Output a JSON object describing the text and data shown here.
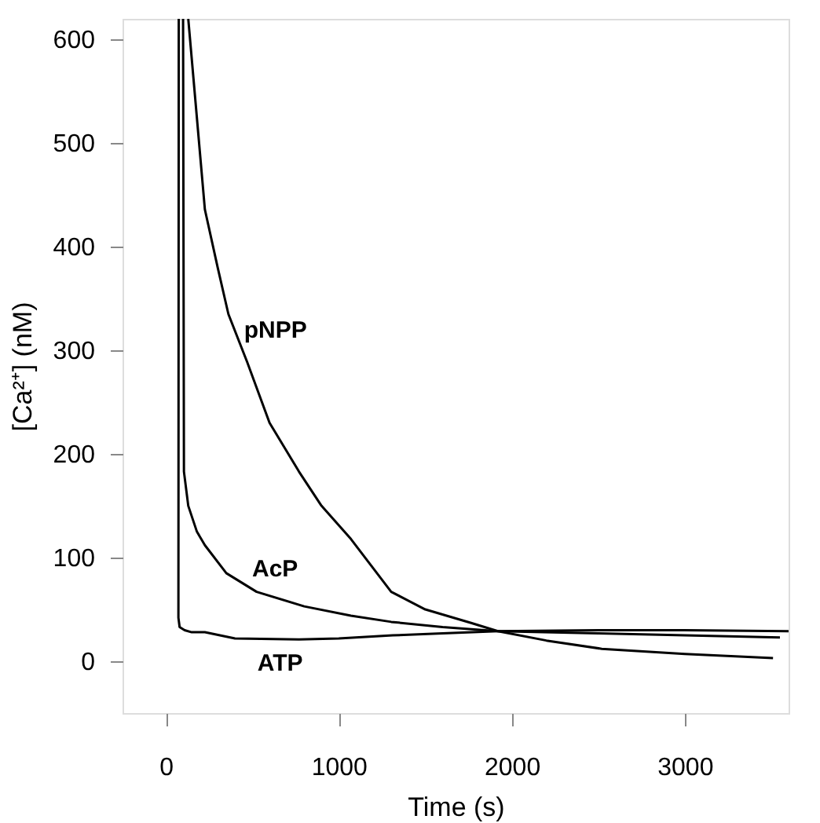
{
  "chart_data": {
    "type": "line",
    "xlabel": "Time (s)",
    "ylabel": "[Ca²⁺] (nM)",
    "xlim": [
      -250,
      3600
    ],
    "ylim": [
      -50,
      620
    ],
    "xticks": [
      0,
      1000,
      2000,
      3000
    ],
    "yticks": [
      0,
      100,
      200,
      300,
      400,
      500,
      600
    ],
    "grid": false,
    "legend": false,
    "marker": "none",
    "line_style": "solid",
    "series": [
      {
        "name": "ATP",
        "color": "#000000",
        "x": [
          75,
          73,
          80,
          109,
          150,
          226,
          400,
          770,
          1000,
          1312,
          1600,
          1920,
          2500,
          3000,
          3600
        ],
        "values": [
          620,
          42,
          33,
          30,
          28,
          28,
          22,
          21,
          22,
          25,
          27,
          29,
          30,
          30,
          29
        ]
      },
      {
        "name": "AcP",
        "color": "#000000",
        "x": [
          100,
          105,
          130,
          180,
          226,
          350,
          525,
          800,
          1070,
          1303,
          1600,
          1920,
          2500,
          3000,
          3550
        ],
        "values": [
          620,
          183,
          150,
          125,
          112,
          85,
          67,
          53,
          44,
          38,
          33,
          29,
          27,
          25,
          23
        ]
      },
      {
        "name": "pNPP",
        "color": "#000000",
        "x": [
          130,
          226,
          300,
          362,
          470,
          600,
          770,
          900,
          1070,
          1303,
          1500,
          1765,
          1920,
          2200,
          2520,
          3000,
          3510
        ],
        "values": [
          620,
          436,
          380,
          335,
          289,
          230,
          183,
          150,
          118,
          67,
          50,
          37,
          29,
          20,
          12,
          7,
          3
        ]
      }
    ]
  }
}
